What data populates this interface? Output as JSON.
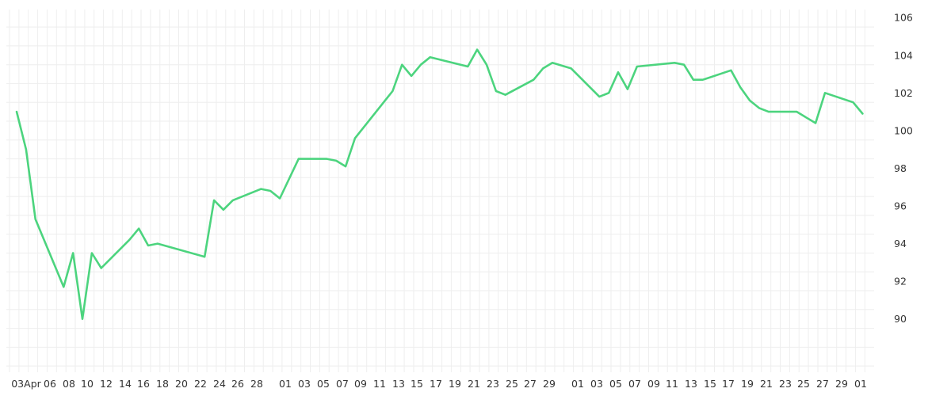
{
  "chart_data": {
    "type": "line",
    "title": "",
    "xlabel": "",
    "ylabel": "",
    "y_axis_position": "right",
    "ylim": [
      87.5,
      106.4
    ],
    "y_ticks": [
      90,
      92,
      94,
      96,
      98,
      100,
      102,
      104,
      106
    ],
    "x_tick_labels": [
      "03Apr",
      "06",
      "08",
      "10",
      "12",
      "14",
      "16",
      "18",
      "20",
      "22",
      "24",
      "26",
      "28",
      "01",
      "03",
      "05",
      "07",
      "09",
      "11",
      "13",
      "15",
      "17",
      "19",
      "21",
      "23",
      "25",
      "27",
      "29",
      "01",
      "03",
      "05",
      "07",
      "09",
      "11",
      "13",
      "15",
      "17",
      "19",
      "21",
      "23",
      "25",
      "27",
      "29",
      "01"
    ],
    "grid": true,
    "line_color": "#4cd47e",
    "grid_color": "#eeeeee",
    "series": [
      {
        "values": [
          101.0,
          99.0,
          95.3,
          91.7,
          93.5,
          90.0,
          93.5,
          92.7,
          94.2,
          94.8,
          93.9,
          94.0,
          93.3,
          96.3,
          95.8,
          96.3,
          96.9,
          96.8,
          96.4,
          98.5,
          98.5,
          98.4,
          98.1,
          99.6,
          102.1,
          103.5,
          102.9,
          103.5,
          103.9,
          103.4,
          104.3,
          103.5,
          102.1,
          101.9,
          102.7,
          103.3,
          103.6,
          103.3,
          101.8,
          102.0,
          103.1,
          102.2,
          103.4,
          103.6,
          103.5,
          102.7,
          102.7,
          103.2,
          102.3,
          101.6,
          101.2,
          101.0,
          101.0,
          100.7,
          100.4,
          102.0,
          101.5,
          100.9
        ],
        "x_index": [
          0,
          1,
          2,
          5,
          6,
          7,
          8,
          9,
          12,
          13,
          14,
          15,
          20,
          21,
          22,
          23,
          26,
          27,
          28,
          30,
          33,
          34,
          35,
          36,
          40,
          41,
          42,
          43,
          44,
          48,
          49,
          50,
          51,
          52,
          55,
          56,
          57,
          59,
          62,
          63,
          64,
          65,
          66,
          70,
          71,
          72,
          73,
          76,
          77,
          78,
          79,
          80,
          83,
          84,
          85,
          86,
          89,
          90
        ]
      }
    ]
  }
}
